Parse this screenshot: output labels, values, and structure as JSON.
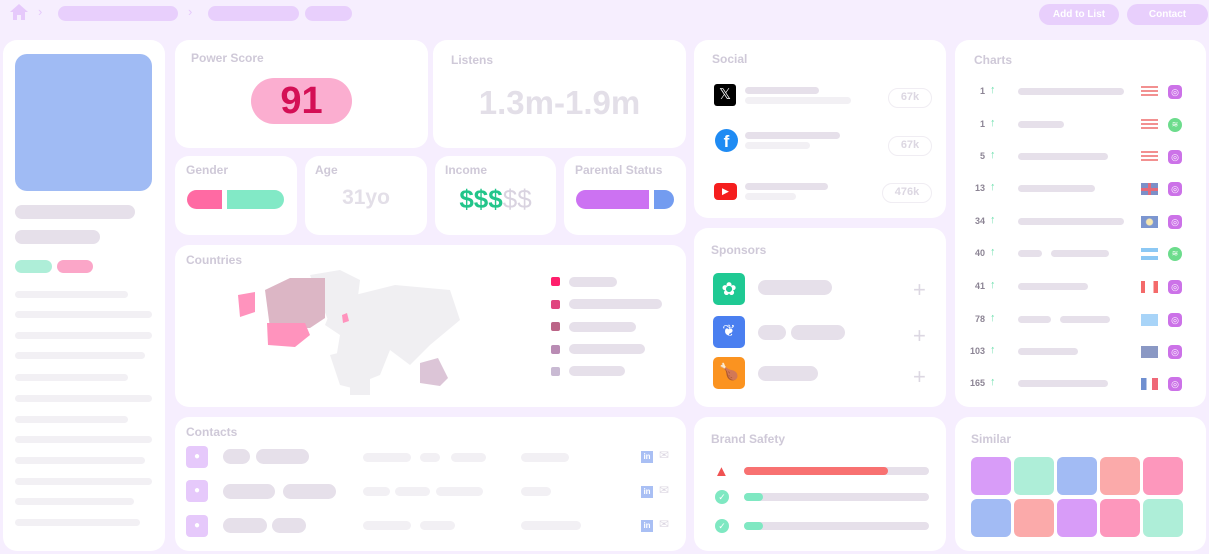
{
  "header": {
    "home_icon": "home-icon",
    "add_to_list": "Add to List",
    "contact": "Contact"
  },
  "power_score": {
    "title": "Power Score",
    "value": "91"
  },
  "listens": {
    "title": "Listens",
    "value": "1.3m-1.9m"
  },
  "gender": {
    "title": "Gender"
  },
  "age": {
    "title": "Age",
    "value": "31yo"
  },
  "income": {
    "title": "Income",
    "filled": "$$$",
    "empty": "$$",
    "level": "3 of 5"
  },
  "parental": {
    "title": "Parental Status"
  },
  "countries": {
    "title": "Countries",
    "legend_colors": [
      "#ff1f6c",
      "#e0457f",
      "#bb6487",
      "#b98cb4",
      "#c9bad3"
    ]
  },
  "contacts": {
    "title": "Contacts"
  },
  "social": {
    "title": "Social",
    "items": [
      {
        "icon": "x-icon",
        "count": "67k"
      },
      {
        "icon": "facebook-icon",
        "count": "67k"
      },
      {
        "icon": "youtube-icon",
        "count": "476k"
      }
    ]
  },
  "sponsors": {
    "title": "Sponsors"
  },
  "brand_safety": {
    "title": "Brand Safety",
    "items": [
      {
        "icon": "warning-icon",
        "level": 0.78,
        "color": "#f87171"
      },
      {
        "icon": "check-icon",
        "level": 0.1,
        "color": "#7fe8c2"
      },
      {
        "icon": "check-icon",
        "level": 0.1,
        "color": "#7fe8c2"
      }
    ]
  },
  "charts": {
    "title": "Charts",
    "rows": [
      {
        "rank": "1",
        "flag": "us",
        "platform": "apple-podcasts"
      },
      {
        "rank": "1",
        "flag": "us",
        "platform": "spotify"
      },
      {
        "rank": "5",
        "flag": "us",
        "platform": "apple-podcasts"
      },
      {
        "rank": "13",
        "flag": "gb",
        "platform": "apple-podcasts"
      },
      {
        "rank": "34",
        "flag": "bz",
        "platform": "apple-podcasts"
      },
      {
        "rank": "40",
        "flag": "ar",
        "platform": "spotify"
      },
      {
        "rank": "41",
        "flag": "ca",
        "platform": "apple-podcasts"
      },
      {
        "rank": "78",
        "flag": "lc",
        "platform": "apple-podcasts"
      },
      {
        "rank": "103",
        "flag": "unknown",
        "platform": "apple-podcasts"
      },
      {
        "rank": "165",
        "flag": "fr",
        "platform": "apple-podcasts"
      }
    ]
  },
  "similar": {
    "title": "Similar",
    "colors": [
      "#d89cf8",
      "#aeeed8",
      "#a2bbf4",
      "#fbaaaa",
      "#fd97bc",
      "#a2bbf4",
      "#fbaaaa",
      "#d89cf8",
      "#fd97bc",
      "#aeeed8"
    ]
  }
}
